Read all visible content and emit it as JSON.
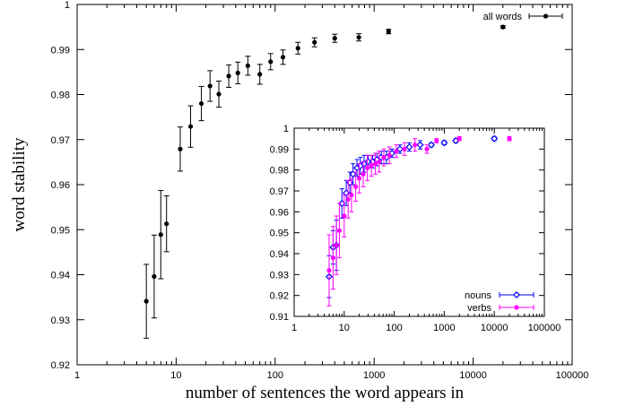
{
  "chart_data": [
    {
      "type": "scatter",
      "title": "",
      "xlabel": "number of sentences the word appears in",
      "ylabel": "word stability",
      "xscale": "log",
      "xlim": [
        1,
        100000
      ],
      "ylim": [
        0.92,
        1
      ],
      "xticks": [
        {
          "value": 1,
          "label": "1"
        },
        {
          "value": 10,
          "label": "10"
        },
        {
          "value": 100,
          "label": "100"
        },
        {
          "value": 1000,
          "label": "1000"
        },
        {
          "value": 10000,
          "label": "10000"
        },
        {
          "value": 100000,
          "label": "100000"
        }
      ],
      "yticks": [
        {
          "value": 0.92,
          "label": "0.92"
        },
        {
          "value": 0.93,
          "label": "0.93"
        },
        {
          "value": 0.94,
          "label": "0.94"
        },
        {
          "value": 0.95,
          "label": "0.95"
        },
        {
          "value": 0.96,
          "label": "0.96"
        },
        {
          "value": 0.97,
          "label": "0.97"
        },
        {
          "value": 0.98,
          "label": "0.98"
        },
        {
          "value": 0.99,
          "label": "0.99"
        },
        {
          "value": 1,
          "label": "1"
        }
      ],
      "legend_position": "top-right",
      "series": [
        {
          "name": "all words",
          "color": "#000000",
          "marker": "filled-circle",
          "points": [
            {
              "x": 5,
              "y": 0.9341,
              "err": 0.0082
            },
            {
              "x": 6,
              "y": 0.9396,
              "err": 0.0092
            },
            {
              "x": 7,
              "y": 0.9489,
              "err": 0.0098
            },
            {
              "x": 8,
              "y": 0.9513,
              "err": 0.0062
            },
            {
              "x": 11,
              "y": 0.9679,
              "err": 0.0049
            },
            {
              "x": 14,
              "y": 0.9729,
              "err": 0.0046
            },
            {
              "x": 18,
              "y": 0.978,
              "err": 0.0038
            },
            {
              "x": 22,
              "y": 0.9819,
              "err": 0.0034
            },
            {
              "x": 27,
              "y": 0.9801,
              "err": 0.0029
            },
            {
              "x": 34,
              "y": 0.9841,
              "err": 0.0025
            },
            {
              "x": 42,
              "y": 0.9848,
              "err": 0.0024
            },
            {
              "x": 53,
              "y": 0.9864,
              "err": 0.0021
            },
            {
              "x": 70,
              "y": 0.9845,
              "err": 0.0022
            },
            {
              "x": 90,
              "y": 0.9873,
              "err": 0.0018
            },
            {
              "x": 120,
              "y": 0.9883,
              "err": 0.0016
            },
            {
              "x": 170,
              "y": 0.9903,
              "err": 0.0013
            },
            {
              "x": 250,
              "y": 0.9916,
              "err": 0.001
            },
            {
              "x": 400,
              "y": 0.9925,
              "err": 0.0009
            },
            {
              "x": 700,
              "y": 0.9927,
              "err": 0.0008
            },
            {
              "x": 1400,
              "y": 0.994,
              "err": 0.0005
            },
            {
              "x": 20000,
              "y": 0.995,
              "err": 0.0003
            }
          ]
        }
      ]
    },
    {
      "type": "scatter",
      "title": "",
      "xlabel": "",
      "ylabel": "",
      "xscale": "log",
      "xlim": [
        1,
        100000
      ],
      "ylim": [
        0.91,
        1
      ],
      "xticks": [
        {
          "value": 1,
          "label": "1"
        },
        {
          "value": 10,
          "label": "10"
        },
        {
          "value": 100,
          "label": "100"
        },
        {
          "value": 1000,
          "label": "1000"
        },
        {
          "value": 10000,
          "label": "10000"
        },
        {
          "value": 100000,
          "label": "100000"
        }
      ],
      "yticks": [
        {
          "value": 0.91,
          "label": "0.91"
        },
        {
          "value": 0.92,
          "label": "0.92"
        },
        {
          "value": 0.93,
          "label": "0.93"
        },
        {
          "value": 0.94,
          "label": "0.94"
        },
        {
          "value": 0.95,
          "label": "0.95"
        },
        {
          "value": 0.96,
          "label": "0.96"
        },
        {
          "value": 0.97,
          "label": "0.97"
        },
        {
          "value": 0.98,
          "label": "0.98"
        },
        {
          "value": 0.99,
          "label": "0.99"
        },
        {
          "value": 1,
          "label": "1"
        }
      ],
      "legend_position": "bottom-right",
      "series": [
        {
          "name": "nouns",
          "color": "#0000ff",
          "marker": "open-diamond",
          "points": [
            {
              "x": 5,
              "y": 0.929,
              "err": 0.01
            },
            {
              "x": 6,
              "y": 0.943,
              "err": 0.008
            },
            {
              "x": 7,
              "y": 0.944,
              "err": 0.012
            },
            {
              "x": 9,
              "y": 0.964,
              "err": 0.007
            },
            {
              "x": 11,
              "y": 0.969,
              "err": 0.006
            },
            {
              "x": 13,
              "y": 0.974,
              "err": 0.005
            },
            {
              "x": 15,
              "y": 0.978,
              "err": 0.005
            },
            {
              "x": 18,
              "y": 0.981,
              "err": 0.004
            },
            {
              "x": 21,
              "y": 0.982,
              "err": 0.004
            },
            {
              "x": 25,
              "y": 0.983,
              "err": 0.004
            },
            {
              "x": 30,
              "y": 0.984,
              "err": 0.003
            },
            {
              "x": 37,
              "y": 0.984,
              "err": 0.003
            },
            {
              "x": 45,
              "y": 0.985,
              "err": 0.003
            },
            {
              "x": 55,
              "y": 0.986,
              "err": 0.003
            },
            {
              "x": 70,
              "y": 0.986,
              "err": 0.003
            },
            {
              "x": 90,
              "y": 0.988,
              "err": 0.002
            },
            {
              "x": 130,
              "y": 0.99,
              "err": 0.002
            },
            {
              "x": 200,
              "y": 0.991,
              "err": 0.002
            },
            {
              "x": 330,
              "y": 0.992,
              "err": 0.002
            },
            {
              "x": 550,
              "y": 0.992,
              "err": 0.001
            },
            {
              "x": 1000,
              "y": 0.993,
              "err": 0.001
            },
            {
              "x": 1700,
              "y": 0.994,
              "err": 0.001
            },
            {
              "x": 10000,
              "y": 0.995,
              "err": 0.001
            }
          ]
        },
        {
          "name": "verbs",
          "color": "#ff00ff",
          "marker": "filled-circle",
          "points": [
            {
              "x": 5,
              "y": 0.932,
              "err": 0.017
            },
            {
              "x": 6,
              "y": 0.938,
              "err": 0.015
            },
            {
              "x": 7,
              "y": 0.944,
              "err": 0.014
            },
            {
              "x": 8,
              "y": 0.951,
              "err": 0.013
            },
            {
              "x": 10,
              "y": 0.958,
              "err": 0.01
            },
            {
              "x": 12,
              "y": 0.966,
              "err": 0.009
            },
            {
              "x": 14,
              "y": 0.968,
              "err": 0.008
            },
            {
              "x": 17,
              "y": 0.972,
              "err": 0.007
            },
            {
              "x": 20,
              "y": 0.976,
              "err": 0.007
            },
            {
              "x": 24,
              "y": 0.978,
              "err": 0.006
            },
            {
              "x": 29,
              "y": 0.981,
              "err": 0.006
            },
            {
              "x": 35,
              "y": 0.982,
              "err": 0.005
            },
            {
              "x": 42,
              "y": 0.983,
              "err": 0.005
            },
            {
              "x": 50,
              "y": 0.984,
              "err": 0.005
            },
            {
              "x": 62,
              "y": 0.986,
              "err": 0.004
            },
            {
              "x": 80,
              "y": 0.987,
              "err": 0.004
            },
            {
              "x": 110,
              "y": 0.989,
              "err": 0.003
            },
            {
              "x": 160,
              "y": 0.99,
              "err": 0.003
            },
            {
              "x": 260,
              "y": 0.992,
              "err": 0.003
            },
            {
              "x": 450,
              "y": 0.99,
              "err": 0.002
            },
            {
              "x": 700,
              "y": 0.994,
              "err": 0.001
            },
            {
              "x": 2000,
              "y": 0.995,
              "err": 0.001
            },
            {
              "x": 20000,
              "y": 0.995,
              "err": 0.001
            }
          ]
        }
      ]
    }
  ]
}
